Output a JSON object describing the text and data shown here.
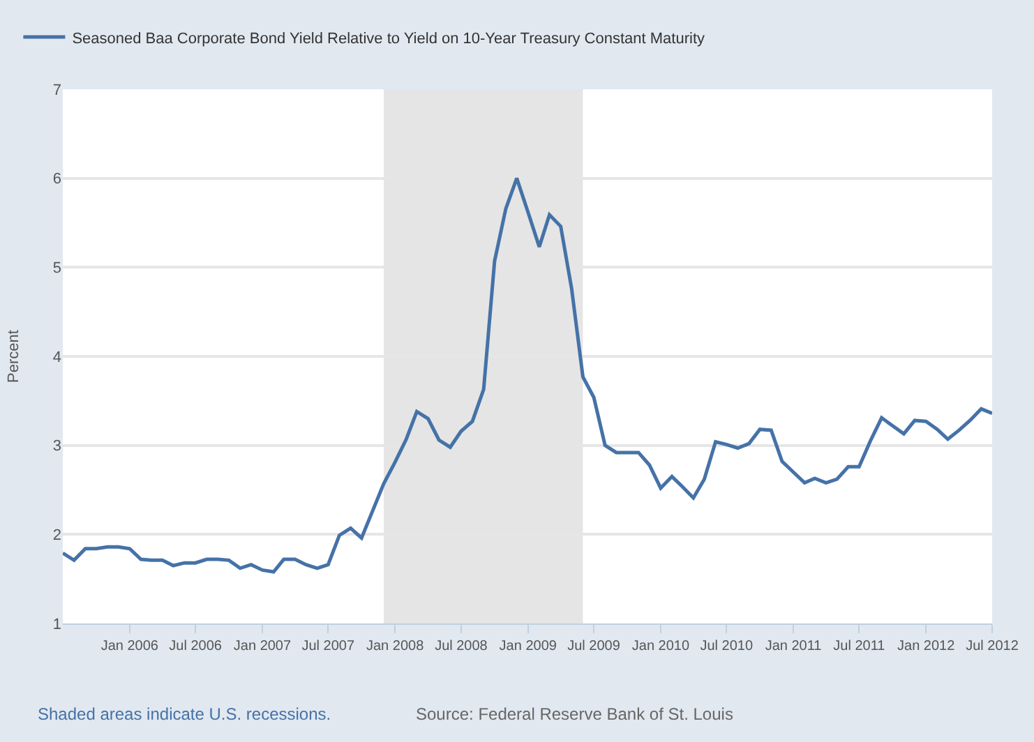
{
  "chart_data": {
    "type": "line",
    "x": [
      "2005-07",
      "2005-08",
      "2005-09",
      "2005-10",
      "2005-11",
      "2005-12",
      "2006-01",
      "2006-02",
      "2006-03",
      "2006-04",
      "2006-05",
      "2006-06",
      "2006-07",
      "2006-08",
      "2006-09",
      "2006-10",
      "2006-11",
      "2006-12",
      "2007-01",
      "2007-02",
      "2007-03",
      "2007-04",
      "2007-05",
      "2007-06",
      "2007-07",
      "2007-08",
      "2007-09",
      "2007-10",
      "2007-11",
      "2007-12",
      "2008-01",
      "2008-02",
      "2008-03",
      "2008-04",
      "2008-05",
      "2008-06",
      "2008-07",
      "2008-08",
      "2008-09",
      "2008-10",
      "2008-11",
      "2008-12",
      "2009-01",
      "2009-02",
      "2009-03",
      "2009-04",
      "2009-05",
      "2009-06",
      "2009-07",
      "2009-08",
      "2009-09",
      "2009-10",
      "2009-11",
      "2009-12",
      "2010-01",
      "2010-02",
      "2010-03",
      "2010-04",
      "2010-05",
      "2010-06",
      "2010-07",
      "2010-08",
      "2010-09",
      "2010-10",
      "2010-11",
      "2010-12",
      "2011-01",
      "2011-02",
      "2011-03",
      "2011-04",
      "2011-05",
      "2011-06",
      "2011-07",
      "2011-08",
      "2011-09",
      "2011-10",
      "2011-11",
      "2011-12",
      "2012-01",
      "2012-02",
      "2012-03",
      "2012-04",
      "2012-05",
      "2012-06",
      "2012-07"
    ],
    "series": [
      {
        "name": "Seasoned Baa Corporate Bond Yield Relative to Yield on 10-Year Treasury Constant Maturity",
        "color": "#4572a7",
        "values": [
          1.79,
          1.71,
          1.84,
          1.84,
          1.86,
          1.86,
          1.84,
          1.72,
          1.71,
          1.71,
          1.65,
          1.68,
          1.68,
          1.72,
          1.72,
          1.71,
          1.62,
          1.66,
          1.6,
          1.58,
          1.72,
          1.72,
          1.66,
          1.62,
          1.66,
          1.99,
          2.07,
          1.96,
          2.27,
          2.57,
          2.81,
          3.07,
          3.38,
          3.3,
          3.06,
          2.98,
          3.16,
          3.27,
          3.63,
          5.07,
          5.66,
          6.0,
          5.62,
          5.23,
          5.59,
          5.46,
          4.76,
          3.77,
          3.54,
          3.0,
          2.92,
          2.92,
          2.92,
          2.78,
          2.52,
          2.65,
          2.54,
          2.41,
          2.62,
          3.04,
          3.01,
          2.97,
          3.02,
          3.18,
          3.17,
          2.82,
          2.7,
          2.58,
          2.63,
          2.58,
          2.62,
          2.76,
          2.76,
          3.05,
          3.31,
          3.22,
          3.13,
          3.28,
          3.27,
          3.18,
          3.07,
          3.17,
          3.28,
          3.41,
          3.36
        ]
      }
    ],
    "xlim": [
      "2005-07",
      "2012-07"
    ],
    "xticks": [
      {
        "value": "2006-01",
        "label": "Jan 2006"
      },
      {
        "value": "2006-07",
        "label": "Jul 2006"
      },
      {
        "value": "2007-01",
        "label": "Jan 2007"
      },
      {
        "value": "2007-07",
        "label": "Jul 2007"
      },
      {
        "value": "2008-01",
        "label": "Jan 2008"
      },
      {
        "value": "2008-07",
        "label": "Jul 2008"
      },
      {
        "value": "2009-01",
        "label": "Jan 2009"
      },
      {
        "value": "2009-07",
        "label": "Jul 2009"
      },
      {
        "value": "2010-01",
        "label": "Jan 2010"
      },
      {
        "value": "2010-07",
        "label": "Jul 2010"
      },
      {
        "value": "2011-01",
        "label": "Jan 2011"
      },
      {
        "value": "2011-07",
        "label": "Jul 2011"
      },
      {
        "value": "2012-01",
        "label": "Jan 2012"
      },
      {
        "value": "2012-07",
        "label": "Jul 2012"
      }
    ],
    "ylim": [
      1,
      7
    ],
    "yticks": [
      1,
      2,
      3,
      4,
      5,
      6,
      7
    ],
    "ylabel": "Percent",
    "grid": "y",
    "legend": "top left",
    "bands": [
      {
        "axis": "x",
        "from": "2007-12",
        "to": "2009-06",
        "color": "#e5e5e5"
      }
    ],
    "annotations": [
      "Shaded areas indicate U.S. recessions.",
      "Source: Federal Reserve Bank of St. Louis"
    ]
  }
}
